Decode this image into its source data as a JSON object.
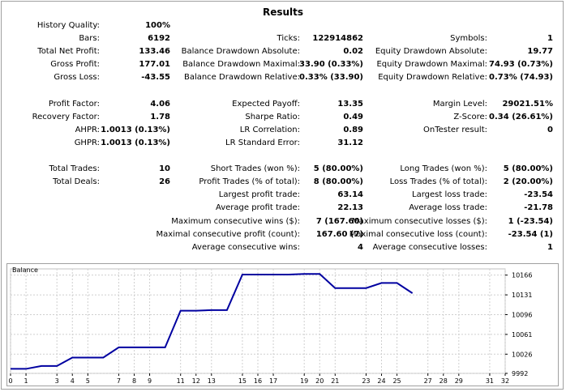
{
  "title": "Results",
  "row_history_quality": {
    "label": "History Quality:",
    "value": "100%"
  },
  "col1": [
    {
      "label": "Bars:",
      "value": "6192"
    },
    {
      "label": "Total Net Profit:",
      "value": "133.46"
    },
    {
      "label": "Gross Profit:",
      "value": "177.01"
    },
    {
      "label": "Gross Loss:",
      "value": "-43.55"
    },
    {
      "label": "Profit Factor:",
      "value": "4.06"
    },
    {
      "label": "Recovery Factor:",
      "value": "1.78"
    },
    {
      "label": "AHPR:",
      "value": "1.0013 (0.13%)"
    },
    {
      "label": "GHPR:",
      "value": "1.0013 (0.13%)"
    },
    {
      "label": "Total Trades:",
      "value": "10"
    },
    {
      "label": "Total Deals:",
      "value": "26"
    }
  ],
  "col2": [
    {
      "label": "Ticks:",
      "value": "122914862"
    },
    {
      "label": "Balance Drawdown Absolute:",
      "value": "0.02"
    },
    {
      "label": "Balance Drawdown Maximal:",
      "value": "33.90 (0.33%)"
    },
    {
      "label": "Balance Drawdown Relative:",
      "value": "0.33% (33.90)"
    },
    {
      "label": "Expected Payoff:",
      "value": "13.35"
    },
    {
      "label": "Sharpe Ratio:",
      "value": "0.49"
    },
    {
      "label": "LR Correlation:",
      "value": "0.89"
    },
    {
      "label": "LR Standard Error:",
      "value": "31.12"
    },
    {
      "label": "Short Trades (won %):",
      "value": "5 (80.00%)"
    },
    {
      "label": "Profit Trades (% of total):",
      "value": "8 (80.00%)"
    },
    {
      "label": "Largest profit trade:",
      "value": "63.14"
    },
    {
      "label": "Average profit trade:",
      "value": "22.13"
    },
    {
      "label": "Maximum consecutive wins ($):",
      "value": "7 (167.60)"
    },
    {
      "label": "Maximal consecutive profit (count):",
      "value": "167.60 (7)"
    },
    {
      "label": "Average consecutive wins:",
      "value": "4"
    }
  ],
  "col3": [
    {
      "label": "Symbols:",
      "value": "1"
    },
    {
      "label": "Equity Drawdown Absolute:",
      "value": "19.77"
    },
    {
      "label": "Equity Drawdown Maximal:",
      "value": "74.93 (0.73%)"
    },
    {
      "label": "Equity Drawdown Relative:",
      "value": "0.73% (74.93)"
    },
    {
      "label": "Margin Level:",
      "value": "29021.51%"
    },
    {
      "label": "Z-Score:",
      "value": "0.34 (26.61%)"
    },
    {
      "label": "OnTester result:",
      "value": "0"
    },
    {
      "label": "Long Trades (won %):",
      "value": "5 (80.00%)"
    },
    {
      "label": "Loss Trades (% of total):",
      "value": "2 (20.00%)"
    },
    {
      "label": "Largest loss trade:",
      "value": "-23.54"
    },
    {
      "label": "Average loss trade:",
      "value": "-21.78"
    },
    {
      "label": "Maximum consecutive losses ($):",
      "value": "1 (-23.54)"
    },
    {
      "label": "Maximal consecutive loss (count):",
      "value": "-23.54 (1)"
    },
    {
      "label": "Average consecutive losses:",
      "value": "1"
    }
  ],
  "chart_data": {
    "type": "line",
    "title": "Balance",
    "xlabel": "",
    "ylabel": "",
    "xlim": [
      0,
      32
    ],
    "ylim": [
      9992,
      10177
    ],
    "x_ticks": [
      0,
      1,
      3,
      4,
      5,
      7,
      8,
      9,
      11,
      12,
      13,
      15,
      16,
      17,
      19,
      20,
      21,
      23,
      24,
      25,
      27,
      28,
      29,
      31,
      32
    ],
    "y_ticks": [
      9992,
      10026,
      10061,
      10096,
      10131,
      10166
    ],
    "grid": true,
    "line_color": "#0000a0",
    "series": [
      {
        "x": [
          0,
          1,
          2,
          3,
          4,
          5,
          6,
          7,
          8,
          9,
          10,
          11,
          12,
          13,
          14,
          15,
          16,
          17,
          18,
          19,
          20,
          21,
          22,
          23,
          24,
          25,
          26
        ],
        "values": [
          10000,
          10000,
          10005,
          10005,
          10020,
          10020,
          10020,
          10038,
          10038,
          10038,
          10038,
          10103,
          10103,
          10104,
          10104,
          10167,
          10167,
          10167,
          10167,
          10168,
          10168,
          10143,
          10143,
          10143,
          10152,
          10152,
          10134
        ]
      }
    ]
  }
}
